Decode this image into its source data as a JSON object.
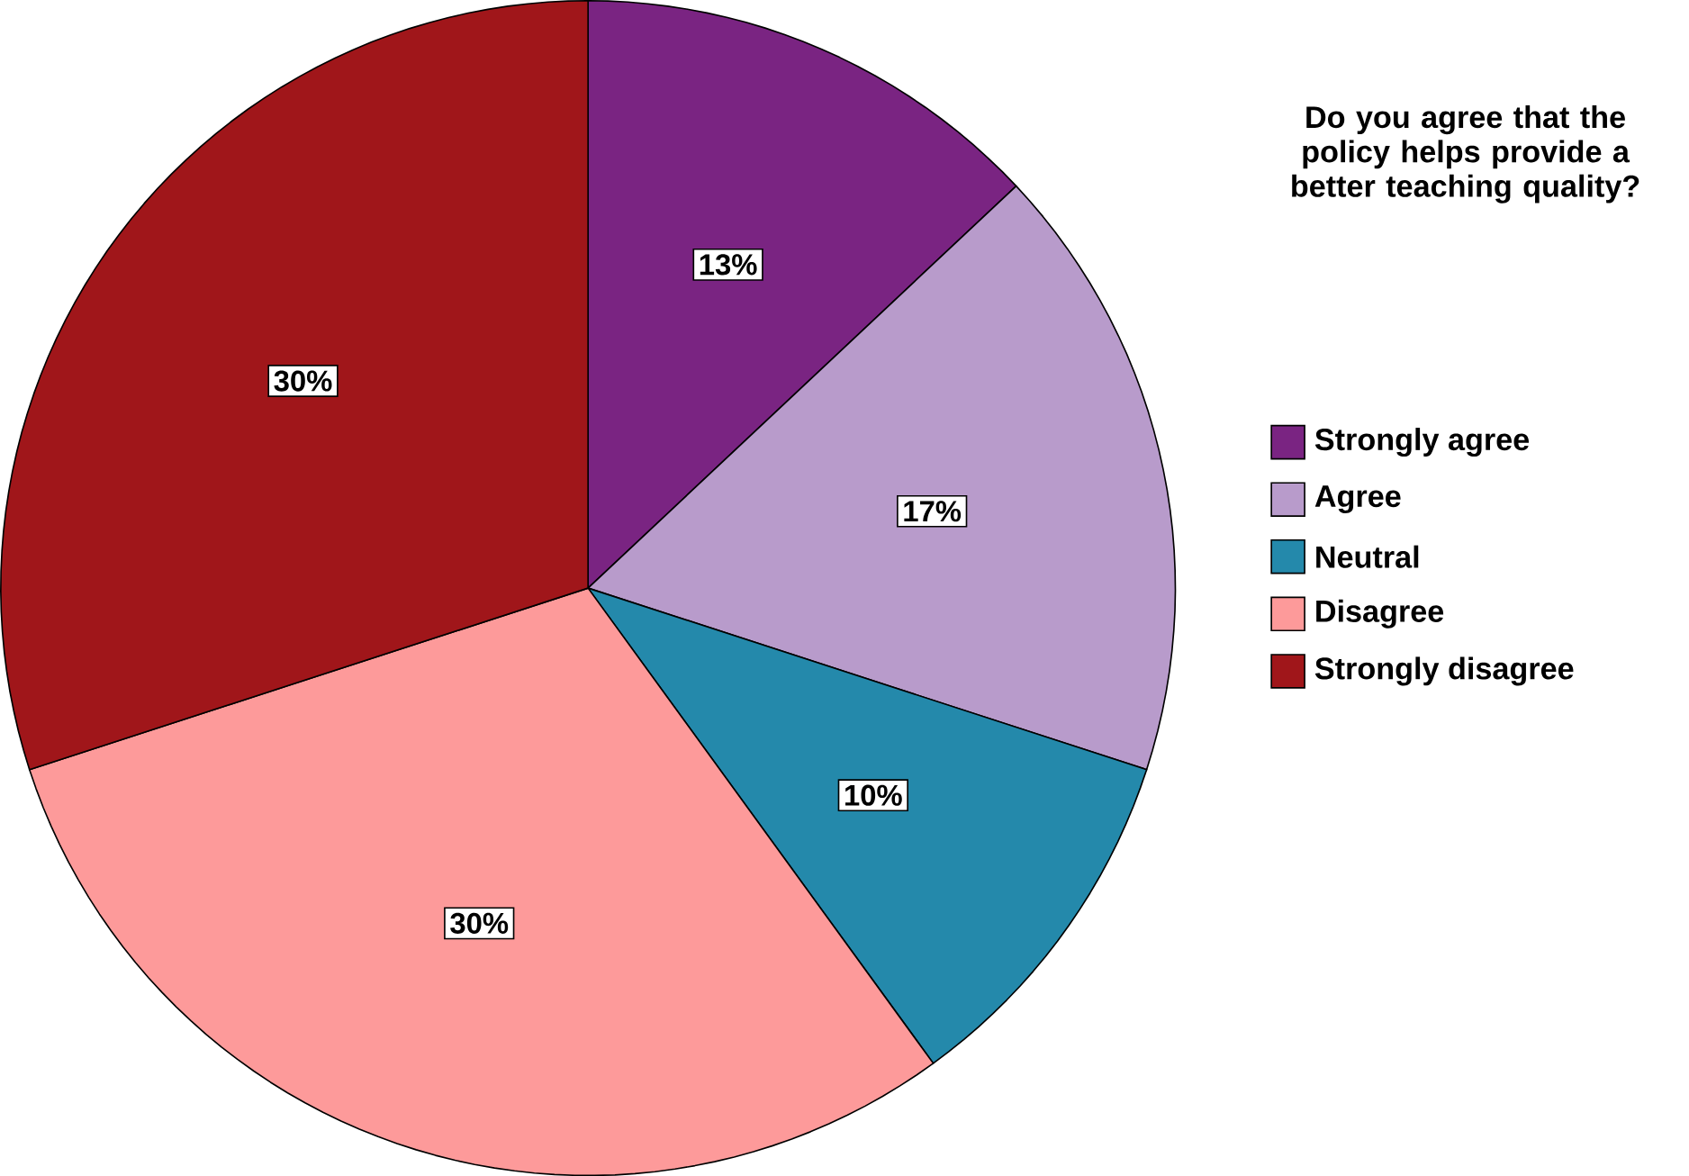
{
  "chart_data": {
    "type": "pie",
    "legend_title": "Do you agree that the policy helps provide a better teaching quality?",
    "categories": [
      "Strongly agree",
      "Agree",
      "Neutral",
      "Disagree",
      "Strongly disagree"
    ],
    "values": [
      13,
      17,
      10,
      30,
      30
    ],
    "colors": [
      "#7a2482",
      "#b89bcb",
      "#2489ab",
      "#fd9a9a",
      "#a0161a"
    ],
    "value_labels": [
      "13%",
      "17%",
      "10%",
      "30%",
      "30%"
    ],
    "legend": "right"
  }
}
